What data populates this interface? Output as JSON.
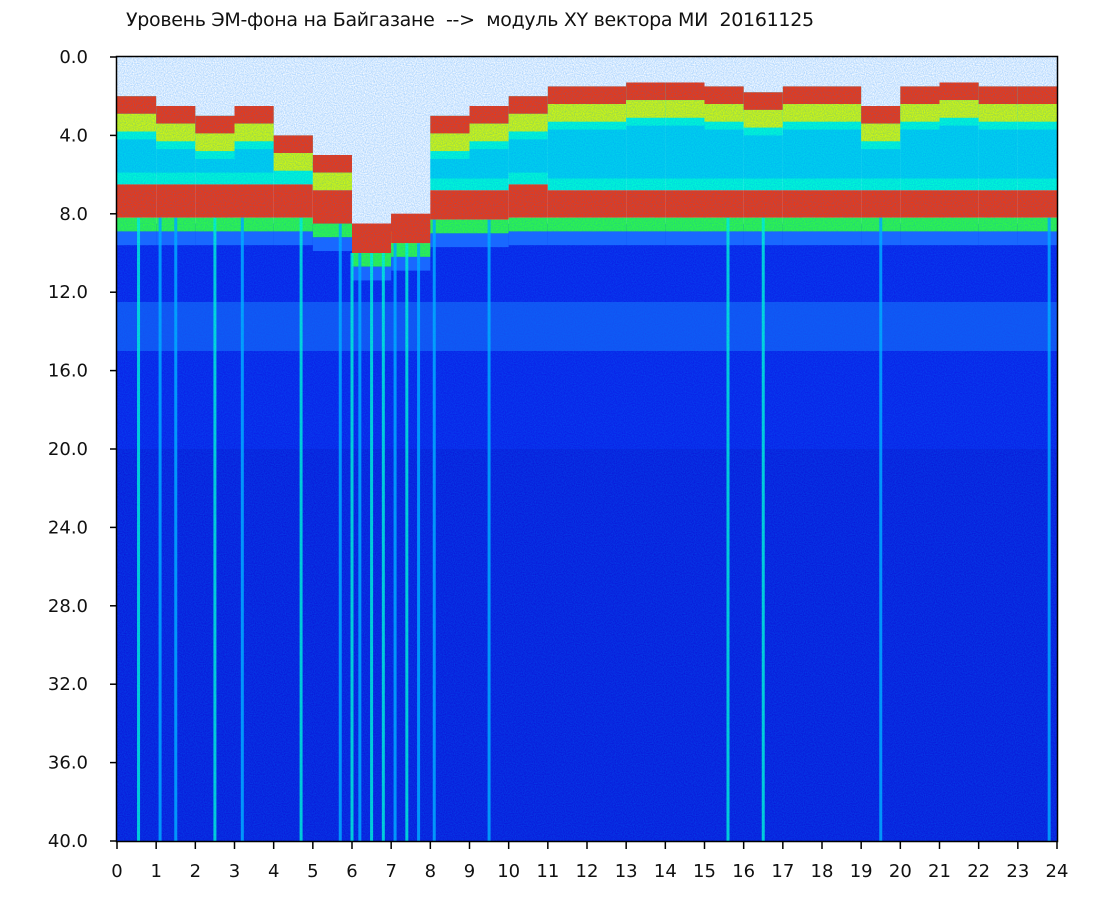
{
  "chart_data": {
    "type": "heatmap",
    "title": "Уровень ЭМ-фона на Байгазане  -->  модуль XY вектора МИ  20161125",
    "xlabel": "",
    "ylabel": "",
    "xlim": [
      0,
      24
    ],
    "ylim": [
      40.0,
      0.0
    ],
    "x_axis_direction": "left-to-right",
    "y_axis_direction": "top-to-bottom",
    "x_ticks": [
      "0",
      "1",
      "2",
      "3",
      "4",
      "5",
      "6",
      "7",
      "8",
      "9",
      "10",
      "11",
      "12",
      "13",
      "14",
      "15",
      "16",
      "17",
      "18",
      "19",
      "20",
      "21",
      "22",
      "23",
      "24"
    ],
    "y_ticks": [
      "0.0",
      "4.0",
      "8.0",
      "12.0",
      "16.0",
      "20.0",
      "24.0",
      "28.0",
      "32.0",
      "36.0",
      "40.0"
    ],
    "colormap": [
      "#0000c8",
      "#0a28e6",
      "#1e64ff",
      "#00b4ff",
      "#00ffd2",
      "#32ff3c",
      "#dcff00",
      "#ffd200",
      "#ff3200",
      "#c80000"
    ],
    "background_color": "#0a1ee6",
    "hourly_noise_top": [
      {
        "x": [
          0,
          1
        ],
        "top": 2.0,
        "red_band": [
          6.5,
          8.2
        ]
      },
      {
        "x": [
          1,
          2
        ],
        "top": 2.5,
        "red_band": [
          6.5,
          8.2
        ]
      },
      {
        "x": [
          2,
          3
        ],
        "top": 3.0,
        "red_band": [
          6.5,
          8.2
        ]
      },
      {
        "x": [
          3,
          4
        ],
        "top": 2.5,
        "red_band": [
          6.5,
          8.2
        ]
      },
      {
        "x": [
          4,
          5
        ],
        "top": 4.0,
        "red_band": [
          6.5,
          8.2
        ]
      },
      {
        "x": [
          5,
          6
        ],
        "top": 5.0,
        "red_band": [
          6.8,
          8.5
        ]
      },
      {
        "x": [
          6,
          7
        ],
        "top": 8.5,
        "red_band": [
          8.5,
          10.0
        ]
      },
      {
        "x": [
          7,
          8
        ],
        "top": 8.0,
        "red_band": [
          8.0,
          9.5
        ]
      },
      {
        "x": [
          8,
          9
        ],
        "top": 3.0,
        "red_band": [
          6.8,
          8.3
        ]
      },
      {
        "x": [
          9,
          10
        ],
        "top": 2.5,
        "red_band": [
          6.8,
          8.3
        ]
      },
      {
        "x": [
          10,
          11
        ],
        "top": 2.0,
        "red_band": [
          6.5,
          8.2
        ]
      },
      {
        "x": [
          11,
          12
        ],
        "top": 1.5,
        "red_band": [
          6.8,
          8.2
        ]
      },
      {
        "x": [
          12,
          13
        ],
        "top": 1.5,
        "red_band": [
          6.8,
          8.2
        ]
      },
      {
        "x": [
          13,
          14
        ],
        "top": 1.3,
        "red_band": [
          6.8,
          8.2
        ]
      },
      {
        "x": [
          14,
          15
        ],
        "top": 1.3,
        "red_band": [
          6.8,
          8.2
        ]
      },
      {
        "x": [
          15,
          16
        ],
        "top": 1.5,
        "red_band": [
          6.8,
          8.2
        ]
      },
      {
        "x": [
          16,
          17
        ],
        "top": 1.8,
        "red_band": [
          6.8,
          8.2
        ]
      },
      {
        "x": [
          17,
          18
        ],
        "top": 1.5,
        "red_band": [
          6.8,
          8.2
        ]
      },
      {
        "x": [
          18,
          19
        ],
        "top": 1.5,
        "red_band": [
          6.8,
          8.2
        ]
      },
      {
        "x": [
          19,
          20
        ],
        "top": 2.5,
        "red_band": [
          6.8,
          8.2
        ]
      },
      {
        "x": [
          20,
          21
        ],
        "top": 1.5,
        "red_band": [
          6.8,
          8.2
        ]
      },
      {
        "x": [
          21,
          22
        ],
        "top": 1.3,
        "red_band": [
          6.8,
          8.2
        ]
      },
      {
        "x": [
          22,
          23
        ],
        "top": 1.5,
        "red_band": [
          6.8,
          8.2
        ]
      },
      {
        "x": [
          23,
          24
        ],
        "top": 1.5,
        "red_band": [
          6.8,
          8.2
        ]
      }
    ],
    "secondary_band": {
      "y": [
        12.5,
        15.0
      ],
      "color": "#1e8cff"
    },
    "vertical_streaks": [
      {
        "x": 0.55,
        "color": "#00ffd2"
      },
      {
        "x": 1.1,
        "color": "#00b4ff"
      },
      {
        "x": 1.5,
        "color": "#00b4ff"
      },
      {
        "x": 2.5,
        "color": "#00ffd2"
      },
      {
        "x": 3.2,
        "color": "#00b4ff"
      },
      {
        "x": 4.7,
        "color": "#00ffd2"
      },
      {
        "x": 5.7,
        "color": "#00b4ff"
      },
      {
        "x": 6.0,
        "color": "#00ffd2"
      },
      {
        "x": 6.2,
        "color": "#00b4ff"
      },
      {
        "x": 6.5,
        "color": "#00ffd2"
      },
      {
        "x": 6.8,
        "color": "#00ffd2"
      },
      {
        "x": 7.1,
        "color": "#00b4ff"
      },
      {
        "x": 7.4,
        "color": "#00ffd2"
      },
      {
        "x": 7.7,
        "color": "#00b4ff"
      },
      {
        "x": 8.1,
        "color": "#00b4ff"
      },
      {
        "x": 9.5,
        "color": "#00b4ff"
      },
      {
        "x": 15.6,
        "color": "#00ffd2"
      },
      {
        "x": 16.5,
        "color": "#00ffd2"
      },
      {
        "x": 19.5,
        "color": "#00b4ff"
      },
      {
        "x": 23.8,
        "color": "#00b4ff"
      }
    ]
  }
}
